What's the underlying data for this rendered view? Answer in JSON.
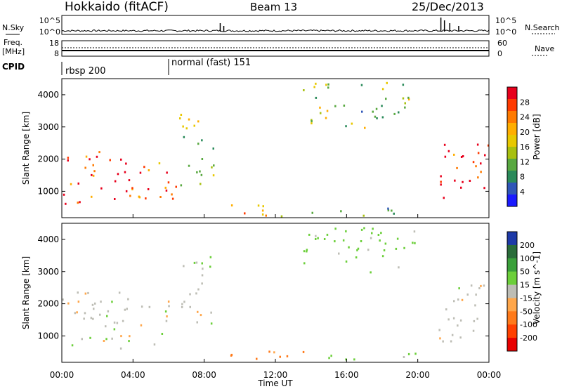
{
  "header": {
    "title": "Hokkaido (fitACF)",
    "beam": "Beam 13",
    "date": "25/Dec/2013"
  },
  "summary_panels": {
    "nsky_label": "N.Sky",
    "nsearch_label": "N.Search",
    "noise_ticks": [
      "10^5",
      "10^0"
    ],
    "freq_label_1": "Freq.",
    "freq_label_2": "[MHz]",
    "freq_ticks": [
      "18",
      "8"
    ],
    "nave_label": "Nave",
    "nave_ticks": [
      "60",
      "0"
    ],
    "cpid_label": "CPID",
    "cpid_segments": [
      {
        "label": "rbsp 200",
        "start_hour": 0
      },
      {
        "label": "normal (fast) 151",
        "start_hour": 6
      }
    ]
  },
  "x_axis": {
    "label": "Time UT",
    "ticks": [
      "00:00",
      "04:00",
      "08:00",
      "12:00",
      "16:00",
      "20:00",
      "00:00"
    ]
  },
  "chart_data": [
    {
      "type": "heatmap",
      "title": "Power",
      "ylabel": "Slant Range [km]",
      "yticks": [
        "4000",
        "3000",
        "2000",
        "1000"
      ],
      "ylim": [
        180,
        4500
      ],
      "xlim": [
        0,
        24
      ],
      "colorbar": {
        "label": "Power [dB]",
        "ticks": [
          "28",
          "24",
          "20",
          "16",
          "12",
          "8",
          "4"
        ],
        "colors": [
          "#e8001c",
          "#ff3a00",
          "#ff7a00",
          "#ffae00",
          "#e8c800",
          "#a8c010",
          "#58a840",
          "#2a8a5a",
          "#2f56b8",
          "#1a1aff"
        ]
      },
      "regions": [
        {
          "t": [
            0,
            4
          ],
          "r": [
            600,
            2300
          ],
          "level": 26
        },
        {
          "t": [
            4,
            6.5
          ],
          "r": [
            800,
            2200
          ],
          "level": 24
        },
        {
          "t": [
            6.5,
            8.5
          ],
          "r": [
            1200,
            3500
          ],
          "level": 14
        },
        {
          "t": [
            9,
            14
          ],
          "r": [
            250,
            600
          ],
          "level": 22
        },
        {
          "t": [
            14,
            20
          ],
          "r": [
            250,
            500
          ],
          "level": 8
        },
        {
          "t": [
            13.5,
            19.5
          ],
          "r": [
            3000,
            4400
          ],
          "level": 14
        },
        {
          "t": [
            21,
            24
          ],
          "r": [
            800,
            2600
          ],
          "level": 28
        }
      ]
    },
    {
      "type": "heatmap",
      "title": "Velocity",
      "ylabel": "Slant Range [km]",
      "yticks": [
        "4000",
        "3000",
        "2000",
        "1000"
      ],
      "ylim": [
        180,
        4500
      ],
      "xlim": [
        0,
        24
      ],
      "colorbar": {
        "label": "Velocity [m s^-1]",
        "ticks": [
          "200",
          "100",
          "50",
          "15",
          "-15",
          "-50",
          "-100",
          "-200"
        ],
        "colors": [
          "#1e3aa8",
          "#2a6c3a",
          "#3aa03a",
          "#6ccf3a",
          "#bdbdb5",
          "#ffa64a",
          "#ff7a1a",
          "#ff4000",
          "#e80000"
        ]
      },
      "regions": [
        {
          "t": [
            0,
            6
          ],
          "r": [
            600,
            2400
          ],
          "level": 0
        },
        {
          "t": [
            6.5,
            8.5
          ],
          "r": [
            1200,
            3500
          ],
          "level": 0
        },
        {
          "t": [
            9,
            14
          ],
          "r": [
            250,
            600
          ],
          "level": -60
        },
        {
          "t": [
            14,
            20
          ],
          "r": [
            250,
            500
          ],
          "level": 30
        },
        {
          "t": [
            13.5,
            20
          ],
          "r": [
            3000,
            4400
          ],
          "level": 30
        },
        {
          "t": [
            21,
            24
          ],
          "r": [
            800,
            2600
          ],
          "level": 0
        }
      ]
    }
  ],
  "colors": {
    "axis": "#000000",
    "velocity_gray": "#bdbdb5"
  }
}
